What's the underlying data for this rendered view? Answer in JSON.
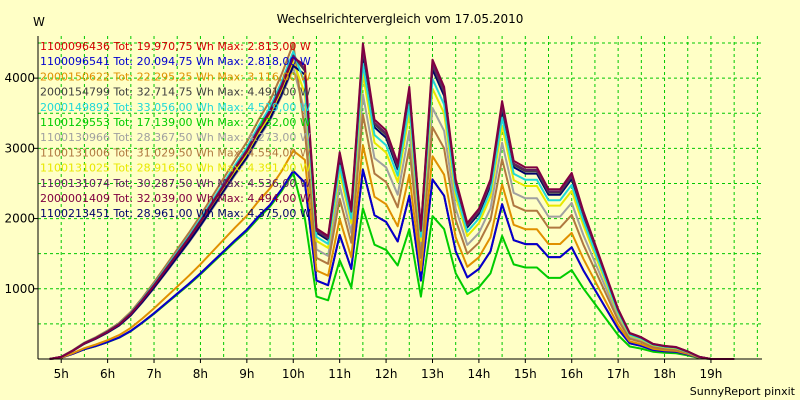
{
  "chart_data": {
    "type": "line",
    "title": "Wechselrichtervergleich vom 17.05.2010",
    "ylabel": "W",
    "credit": "SunnyReport pinxit",
    "x": [
      4.75,
      5.0,
      5.25,
      5.5,
      5.75,
      6.0,
      6.25,
      6.5,
      6.75,
      7.0,
      7.25,
      7.5,
      7.75,
      8.0,
      8.25,
      8.5,
      8.75,
      9.0,
      9.25,
      9.5,
      9.75,
      10.0,
      10.25,
      10.5,
      10.75,
      11.0,
      11.25,
      11.5,
      11.75,
      12.0,
      12.25,
      12.5,
      12.75,
      13.0,
      13.25,
      13.5,
      13.75,
      14.0,
      14.25,
      14.5,
      14.75,
      15.0,
      15.25,
      15.5,
      15.75,
      16.0,
      16.25,
      16.5,
      16.75,
      17.0,
      17.25,
      17.5,
      17.75,
      18.0,
      18.25,
      18.5,
      18.75,
      19.0,
      19.25,
      19.5
    ],
    "xticks": [
      "5h",
      "6h",
      "7h",
      "8h",
      "9h",
      "10h",
      "11h",
      "12h",
      "13h",
      "14h",
      "15h",
      "16h",
      "17h",
      "18h",
      "19h"
    ],
    "xlim": [
      4.5,
      20.1
    ],
    "ylim": [
      0,
      4600
    ],
    "yticks": [
      1000,
      2000,
      3000,
      4000
    ],
    "series": [
      {
        "name": "1100096436",
        "legend": "1100096436 Tot: 19.970,75 Wh Max: 2.813,00 W",
        "color": "#d40000",
        "scale": 0.93,
        "scale_pm": 0.93
      },
      {
        "name": "1100096541",
        "legend": "1100096541 Tot: 20.094,75 Wh Max: 2.818,00 W",
        "color": "#0000d0",
        "scale": 0.93,
        "scale_pm": 0.93
      },
      {
        "name": "2000150622",
        "legend": "2000150622 Tot: 22.295,25 Wh Max: 3.116,00 W",
        "color": "#e09000",
        "scale": 1.03,
        "scale_pm": 1.05
      },
      {
        "name": "2000154799",
        "legend": "2000154799 Tot: 32.714,75 Wh Max: 4.491,00 W",
        "color": "#404040",
        "scale": 1.5,
        "scale_pm": 1.52
      },
      {
        "name": "2000149892",
        "legend": "2000149892 Tot: 33.056,00 Wh Max: 4.519,00 W",
        "color": "#20d8d8",
        "scale": 1.52,
        "scale_pm": 1.45
      },
      {
        "name": "1100129553",
        "legend": "1100129553 Tot: 17.139,00 Wh Max: 2.732,00 W",
        "color": "#00cc00",
        "scale": 0.92,
        "scale_pm": 0.74
      },
      {
        "name": "1100130966",
        "legend": "1100130966 Tot: 28.367,50 Wh Max: 4.273,00 W",
        "color": "#a0a0a0",
        "scale": 1.44,
        "scale_pm": 1.3
      },
      {
        "name": "1100131006",
        "legend": "1100131006 Tot: 31.029,50 Wh Max: 4.554,00 W",
        "color": "#b07840",
        "scale": 1.56,
        "scale_pm": 1.2
      },
      {
        "name": "1100131025",
        "legend": "1100131025 Tot: 28.916,50 Wh Max: 4.391,00 W",
        "color": "#e8e800",
        "scale": 1.47,
        "scale_pm": 1.4
      },
      {
        "name": "1100131074",
        "legend": "1100131074 Tot: 30.287,50 Wh Max: 4.536,00 W",
        "color": "#602060",
        "scale": 1.5,
        "scale_pm": 1.53
      },
      {
        "name": "2000001409",
        "legend": "2000001409 Tot: 32.039,00 Wh Max: 4.494,00 W",
        "color": "#800040",
        "scale": 1.49,
        "scale_pm": 1.55
      },
      {
        "name": "1100213451",
        "legend": "1100213451 Tot: 28.961,00 Wh Max: 4.375,00 W",
        "color": "#00006a",
        "scale": 1.45,
        "scale_pm": 1.5
      }
    ],
    "base_profile": [
      0,
      20,
      80,
      150,
      200,
      260,
      330,
      430,
      560,
      700,
      850,
      1000,
      1150,
      1310,
      1480,
      1650,
      1820,
      1980,
      2180,
      2360,
      2600,
      2880,
      2700,
      1200,
      1130,
      1900,
      1380,
      2900,
      2200,
      2100,
      1800,
      2500,
      1200,
      2750,
      2500,
      1650,
      1250,
      1380,
      1650,
      2370,
      1820,
      1760,
      1760,
      1560,
      1560,
      1710,
      1360,
      1060,
      760,
      460,
      240,
      200,
      140,
      120,
      110,
      70,
      20,
      0,
      0,
      0
    ],
    "legend_ref": "2000154799"
  }
}
